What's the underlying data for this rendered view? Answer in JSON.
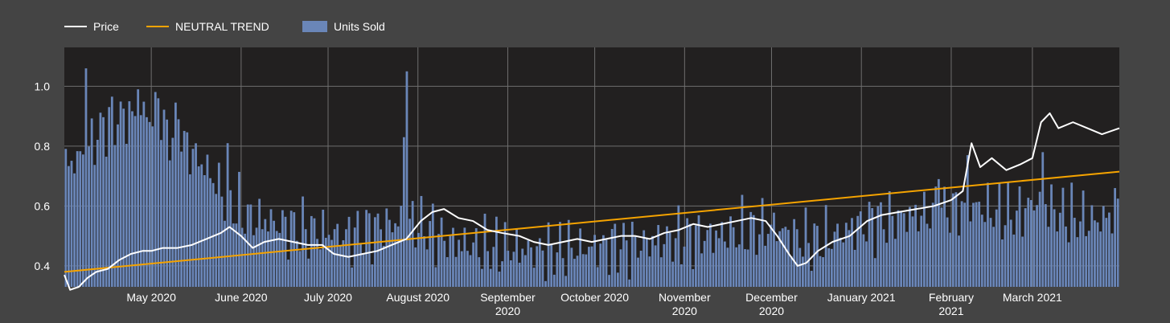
{
  "chart_data": {
    "type": "line",
    "title": "",
    "xlabel": "",
    "ylabel": "",
    "x_range": [
      "2020-04-01",
      "2021-03-31"
    ],
    "ylim": [
      0.33,
      1.13
    ],
    "y_ticks": [
      0.4,
      0.6,
      0.8,
      1.0
    ],
    "y_tick_labels": [
      "0.4",
      "0.6",
      "0.8",
      "1.0"
    ],
    "x_ticks": [
      {
        "date": "2020-05-01",
        "label": [
          "May 2020"
        ]
      },
      {
        "date": "2020-06-01",
        "label": [
          "June 2020"
        ]
      },
      {
        "date": "2020-07-01",
        "label": [
          "July 2020"
        ]
      },
      {
        "date": "2020-08-01",
        "label": [
          "August 2020"
        ]
      },
      {
        "date": "2020-09-01",
        "label": [
          "September",
          "2020"
        ]
      },
      {
        "date": "2020-10-01",
        "label": [
          "October 2020"
        ]
      },
      {
        "date": "2020-11-01",
        "label": [
          "November",
          "2020"
        ]
      },
      {
        "date": "2020-12-01",
        "label": [
          "December",
          "2020"
        ]
      },
      {
        "date": "2021-01-01",
        "label": [
          "January 2021"
        ]
      },
      {
        "date": "2021-02-01",
        "label": [
          "February",
          "2021"
        ]
      },
      {
        "date": "2021-03-01",
        "label": [
          "March 2021"
        ]
      }
    ],
    "grid": true,
    "legend_position": "top-left",
    "colors": {
      "background": "#444444",
      "plot_background": "#222020",
      "grid": "#6e6e6e",
      "price": "#ffffff",
      "trend": "#f5a300",
      "units": "#6a86b8"
    },
    "series": [
      {
        "name": "Price",
        "kind": "line",
        "points": [
          [
            "2020-04-01",
            0.37
          ],
          [
            "2020-04-03",
            0.32
          ],
          [
            "2020-04-06",
            0.33
          ],
          [
            "2020-04-09",
            0.36
          ],
          [
            "2020-04-12",
            0.38
          ],
          [
            "2020-04-16",
            0.39
          ],
          [
            "2020-04-20",
            0.42
          ],
          [
            "2020-04-24",
            0.44
          ],
          [
            "2020-04-28",
            0.45
          ],
          [
            "2020-05-01",
            0.45
          ],
          [
            "2020-05-05",
            0.46
          ],
          [
            "2020-05-10",
            0.46
          ],
          [
            "2020-05-15",
            0.47
          ],
          [
            "2020-05-20",
            0.49
          ],
          [
            "2020-05-25",
            0.51
          ],
          [
            "2020-05-28",
            0.53
          ],
          [
            "2020-06-01",
            0.5
          ],
          [
            "2020-06-05",
            0.46
          ],
          [
            "2020-06-09",
            0.48
          ],
          [
            "2020-06-14",
            0.49
          ],
          [
            "2020-06-19",
            0.48
          ],
          [
            "2020-06-24",
            0.47
          ],
          [
            "2020-06-29",
            0.47
          ],
          [
            "2020-07-03",
            0.44
          ],
          [
            "2020-07-08",
            0.43
          ],
          [
            "2020-07-13",
            0.44
          ],
          [
            "2020-07-18",
            0.45
          ],
          [
            "2020-07-23",
            0.47
          ],
          [
            "2020-07-28",
            0.49
          ],
          [
            "2020-08-02",
            0.55
          ],
          [
            "2020-08-06",
            0.58
          ],
          [
            "2020-08-10",
            0.59
          ],
          [
            "2020-08-15",
            0.56
          ],
          [
            "2020-08-20",
            0.55
          ],
          [
            "2020-08-25",
            0.52
          ],
          [
            "2020-08-30",
            0.51
          ],
          [
            "2020-09-05",
            0.5
          ],
          [
            "2020-09-10",
            0.48
          ],
          [
            "2020-09-15",
            0.47
          ],
          [
            "2020-09-20",
            0.48
          ],
          [
            "2020-09-25",
            0.49
          ],
          [
            "2020-09-30",
            0.48
          ],
          [
            "2020-10-05",
            0.49
          ],
          [
            "2020-10-10",
            0.5
          ],
          [
            "2020-10-15",
            0.5
          ],
          [
            "2020-10-20",
            0.49
          ],
          [
            "2020-10-25",
            0.51
          ],
          [
            "2020-10-30",
            0.52
          ],
          [
            "2020-11-04",
            0.54
          ],
          [
            "2020-11-09",
            0.53
          ],
          [
            "2020-11-14",
            0.54
          ],
          [
            "2020-11-19",
            0.55
          ],
          [
            "2020-11-24",
            0.56
          ],
          [
            "2020-11-29",
            0.55
          ],
          [
            "2020-12-03",
            0.5
          ],
          [
            "2020-12-07",
            0.44
          ],
          [
            "2020-12-10",
            0.4
          ],
          [
            "2020-12-13",
            0.41
          ],
          [
            "2020-12-17",
            0.45
          ],
          [
            "2020-12-22",
            0.48
          ],
          [
            "2020-12-28",
            0.5
          ],
          [
            "2021-01-03",
            0.55
          ],
          [
            "2021-01-08",
            0.57
          ],
          [
            "2021-01-14",
            0.58
          ],
          [
            "2021-01-20",
            0.59
          ],
          [
            "2021-01-26",
            0.6
          ],
          [
            "2021-02-01",
            0.62
          ],
          [
            "2021-02-05",
            0.65
          ],
          [
            "2021-02-08",
            0.81
          ],
          [
            "2021-02-11",
            0.73
          ],
          [
            "2021-02-15",
            0.76
          ],
          [
            "2021-02-20",
            0.72
          ],
          [
            "2021-02-25",
            0.74
          ],
          [
            "2021-03-01",
            0.76
          ],
          [
            "2021-03-04",
            0.88
          ],
          [
            "2021-03-07",
            0.91
          ],
          [
            "2021-03-10",
            0.86
          ],
          [
            "2021-03-15",
            0.88
          ],
          [
            "2021-03-20",
            0.86
          ],
          [
            "2021-03-25",
            0.84
          ],
          [
            "2021-03-31",
            0.86
          ]
        ]
      },
      {
        "name": "NEUTRAL TREND",
        "kind": "line",
        "points": [
          [
            "2020-04-01",
            0.38
          ],
          [
            "2021-03-31",
            0.715
          ]
        ]
      },
      {
        "name": "Units Sold",
        "kind": "bar",
        "bar_width_days": 1,
        "points": [
          [
            "2020-04-01",
            0.73
          ],
          [
            "2020-04-08",
            0.78
          ],
          [
            "2020-04-15",
            0.88
          ],
          [
            "2020-04-22",
            0.9
          ],
          [
            "2020-04-29",
            0.91
          ],
          [
            "2020-05-06",
            0.85
          ],
          [
            "2020-05-13",
            0.8
          ],
          [
            "2020-05-20",
            0.72
          ],
          [
            "2020-05-27",
            0.62
          ],
          [
            "2020-06-03",
            0.56
          ],
          [
            "2020-06-10",
            0.55
          ],
          [
            "2020-06-17",
            0.53
          ],
          [
            "2020-06-24",
            0.52
          ],
          [
            "2020-07-01",
            0.51
          ],
          [
            "2020-07-08",
            0.5
          ],
          [
            "2020-07-15",
            0.52
          ],
          [
            "2020-07-22",
            0.54
          ],
          [
            "2020-07-29",
            0.55
          ],
          [
            "2020-08-05",
            0.52
          ],
          [
            "2020-08-12",
            0.48
          ],
          [
            "2020-08-19",
            0.47
          ],
          [
            "2020-08-26",
            0.46
          ],
          [
            "2020-09-02",
            0.46
          ],
          [
            "2020-09-09",
            0.45
          ],
          [
            "2020-09-16",
            0.45
          ],
          [
            "2020-09-23",
            0.46
          ],
          [
            "2020-09-30",
            0.46
          ],
          [
            "2020-10-07",
            0.47
          ],
          [
            "2020-10-14",
            0.47
          ],
          [
            "2020-10-21",
            0.48
          ],
          [
            "2020-10-28",
            0.49
          ],
          [
            "2020-11-04",
            0.5
          ],
          [
            "2020-11-11",
            0.5
          ],
          [
            "2020-11-18",
            0.51
          ],
          [
            "2020-11-25",
            0.52
          ],
          [
            "2020-12-02",
            0.53
          ],
          [
            "2020-12-09",
            0.5
          ],
          [
            "2020-12-16",
            0.48
          ],
          [
            "2020-12-23",
            0.5
          ],
          [
            "2020-12-30",
            0.53
          ],
          [
            "2021-01-06",
            0.55
          ],
          [
            "2021-01-13",
            0.56
          ],
          [
            "2021-01-20",
            0.57
          ],
          [
            "2021-01-27",
            0.58
          ],
          [
            "2021-02-03",
            0.59
          ],
          [
            "2021-02-10",
            0.6
          ],
          [
            "2021-02-17",
            0.58
          ],
          [
            "2021-02-24",
            0.57
          ],
          [
            "2021-03-03",
            0.62
          ],
          [
            "2021-03-10",
            0.58
          ],
          [
            "2021-03-17",
            0.56
          ],
          [
            "2021-03-24",
            0.55
          ],
          [
            "2021-03-31",
            0.58
          ]
        ],
        "spikes": [
          [
            "2020-04-08",
            1.06
          ],
          [
            "2020-04-26",
            0.99
          ],
          [
            "2020-05-03",
            0.96
          ],
          [
            "2020-05-10",
            0.89
          ],
          [
            "2020-05-27",
            0.81
          ],
          [
            "2020-07-27",
            0.83
          ],
          [
            "2020-07-28",
            1.05
          ],
          [
            "2021-01-28",
            0.69
          ],
          [
            "2021-02-07",
            0.77
          ],
          [
            "2021-03-05",
            0.78
          ],
          [
            "2021-03-30",
            0.66
          ]
        ]
      }
    ]
  }
}
